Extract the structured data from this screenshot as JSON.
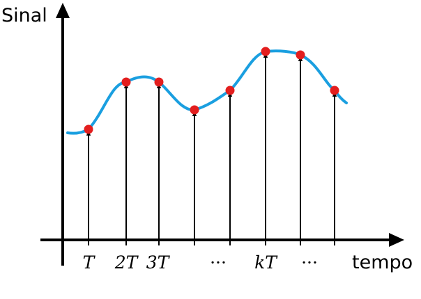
{
  "axes": {
    "y_label": "Sinal",
    "x_label": "tempo"
  },
  "tick_labels": [
    "T",
    "2T",
    "3T",
    "···",
    "kT",
    "···"
  ],
  "colors": {
    "curve": "#1a9fe0",
    "sample_dot": "#e31e1e",
    "axis": "#000000",
    "arrow": "#000000"
  },
  "chart_data": {
    "type": "line",
    "samples": [
      {
        "x_label": "T",
        "level": 0.16
      },
      {
        "x_label": "2T",
        "level": 0.235
      },
      {
        "x_label": "3T",
        "level": 0.235
      },
      {
        "x_label": "",
        "level": 0.191
      },
      {
        "x_label": "···",
        "level": 0.216
      },
      {
        "x_label": "kT",
        "level": 0.27
      },
      {
        "x_label": "",
        "level": 0.266
      },
      {
        "x_label": "···",
        "level": 0.216
      }
    ]
  }
}
